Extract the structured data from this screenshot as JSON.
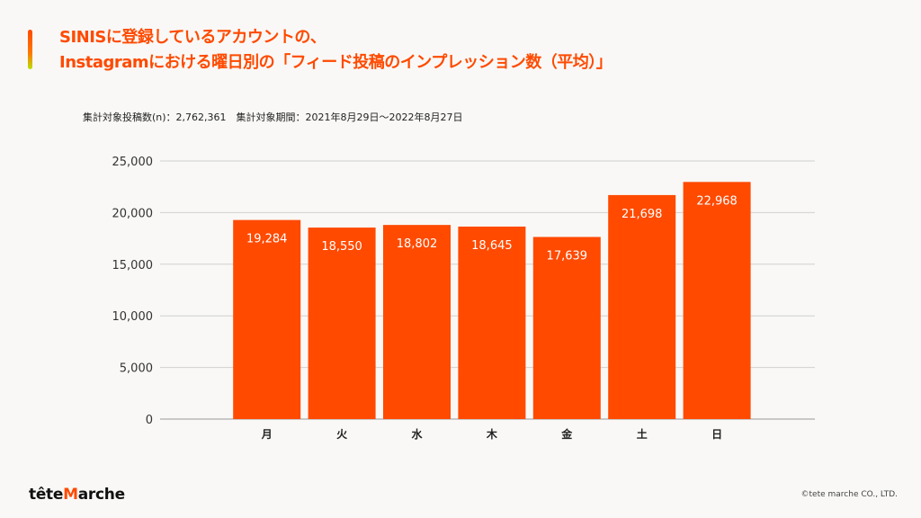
{
  "title": {
    "line1": "SINISに登録しているアカウントの、",
    "line2": "Instagramにおける曜日別の「フィード投稿のインプレッション数（平均）」"
  },
  "subtitle": "集計対象投稿数(n)：2,762,361　集計対象期間：2021年8月29日～2022年8月27日",
  "chart_data": {
    "type": "bar",
    "categories": [
      "月",
      "火",
      "水",
      "木",
      "金",
      "土",
      "日"
    ],
    "values": [
      19284,
      18550,
      18802,
      18645,
      17639,
      21698,
      22968
    ],
    "value_labels": [
      "19,284",
      "18,550",
      "18,802",
      "18,645",
      "17,639",
      "21,698",
      "22,968"
    ],
    "ylim": [
      0,
      25000
    ],
    "yticks": [
      0,
      5000,
      10000,
      15000,
      20000,
      25000
    ],
    "ytick_labels": [
      "0",
      "5,000",
      "10,000",
      "15,000",
      "20,000",
      "25,000"
    ],
    "grid": true,
    "bar_color": "#ff4a00"
  },
  "footer": {
    "logo_a": "tête",
    "logo_m": "M",
    "logo_b": "arche",
    "copyright": "©tete marche CO., LTD."
  }
}
